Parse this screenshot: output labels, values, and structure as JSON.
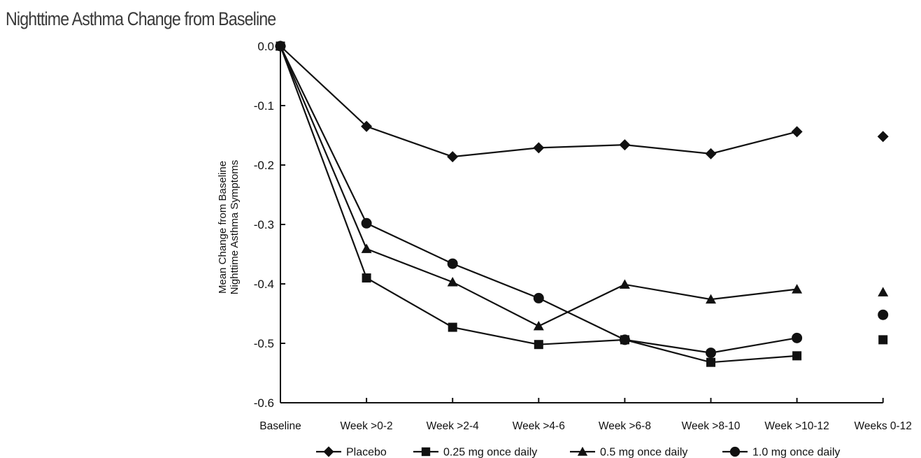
{
  "page": {
    "title": "Nighttime Asthma Change from Baseline"
  },
  "colors": {
    "ink": "#111111",
    "title": "#3a3a3a"
  },
  "chart_data": {
    "type": "line",
    "title": "Nighttime Asthma Change from Baseline",
    "ylabel_lines": [
      "Mean Change from Baseline",
      "Nighttime Asthma Symptoms"
    ],
    "xlabel": "",
    "categories": [
      "Baseline",
      "Week >0-2",
      "Week >2-4",
      "Week >4-6",
      "Week >6-8",
      "Week >8-10",
      "Week >10-12",
      "Weeks 0-12"
    ],
    "ylim": [
      -0.6,
      0.0
    ],
    "yticks": [
      0.0,
      -0.1,
      -0.2,
      -0.3,
      -0.4,
      -0.5,
      -0.6
    ],
    "ytick_labels": [
      "0.0",
      "-0.1",
      "-0.2",
      "-0.3",
      "-0.4",
      "-0.5",
      "-0.6"
    ],
    "grid": false,
    "legend_position": "bottom",
    "connected_categories": 7,
    "series": [
      {
        "name": "Placebo",
        "marker": "diamond",
        "values": [
          0.0,
          -0.135,
          -0.186,
          -0.171,
          -0.166,
          -0.181,
          -0.144,
          -0.152
        ]
      },
      {
        "name": "0.25 mg once daily",
        "marker": "square",
        "values": [
          0.0,
          -0.39,
          -0.473,
          -0.502,
          -0.494,
          -0.532,
          -0.521,
          -0.494
        ]
      },
      {
        "name": "0.5 mg once daily",
        "marker": "triangle",
        "values": [
          0.0,
          -0.341,
          -0.397,
          -0.471,
          -0.401,
          -0.426,
          -0.409,
          -0.414
        ]
      },
      {
        "name": "1.0 mg once daily",
        "marker": "circle",
        "values": [
          0.0,
          -0.298,
          -0.366,
          -0.424,
          -0.494,
          -0.516,
          -0.491,
          -0.452
        ]
      }
    ]
  }
}
